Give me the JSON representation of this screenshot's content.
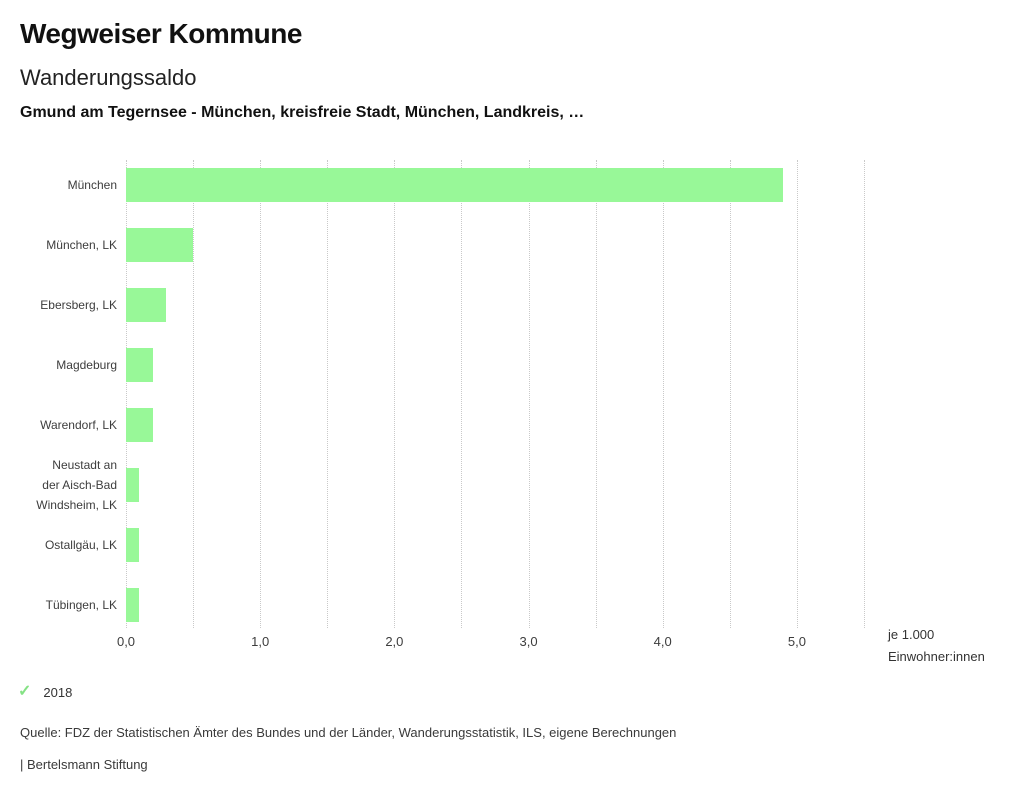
{
  "header": {
    "title": "Wegweiser Kommune",
    "subtitle": "Wanderungssaldo",
    "filter_line": "Gmund am Tegernsee - München, kreisfreie Stadt, München, Landkreis, …"
  },
  "chart_data": {
    "type": "bar",
    "orientation": "horizontal",
    "title": "Wanderungssaldo",
    "categories": [
      "München",
      "München, LK",
      "Ebersberg, LK",
      "Magdeburg",
      "Warendorf, LK",
      "Neustadt an der Aisch-Bad Windsheim, LK",
      "Ostallgäu, LK",
      "Tübingen, LK"
    ],
    "label_lines": [
      [
        "München"
      ],
      [
        "München, LK"
      ],
      [
        "Ebersberg, LK"
      ],
      [
        "Magdeburg"
      ],
      [
        "Warendorf, LK"
      ],
      [
        "Neustadt an",
        "der Aisch-Bad",
        "Windsheim, LK"
      ],
      [
        "Ostallgäu, LK"
      ],
      [
        "Tübingen, LK"
      ]
    ],
    "series": [
      {
        "name": "2018",
        "values": [
          4.9,
          0.5,
          0.3,
          0.2,
          0.2,
          0.1,
          0.1,
          0.1
        ]
      }
    ],
    "xlim": [
      0,
      5.5
    ],
    "grid_step": 0.5,
    "grid": true,
    "tick_values": [
      0,
      1,
      2,
      3,
      4,
      5
    ],
    "tick_labels": [
      "0,0",
      "1,0",
      "2,0",
      "3,0",
      "4,0",
      "5,0"
    ],
    "unit_label": "je 1.000\nEinwohner:innen",
    "legend": {
      "position": "bottom-left",
      "entries": [
        {
          "icon": "check-icon",
          "label": "2018",
          "active": true
        }
      ]
    }
  },
  "icons": {
    "check": "✓"
  },
  "footer": {
    "source": "Quelle: FDZ der Statistischen Ämter des Bundes und der Länder, Wanderungsstatistik, ILS, eigene Berechnungen",
    "brand": "| Bertelsmann Stiftung"
  },
  "colors": {
    "bar": "#98f898",
    "check": "#85e285",
    "grid": "#c9c9c9"
  }
}
